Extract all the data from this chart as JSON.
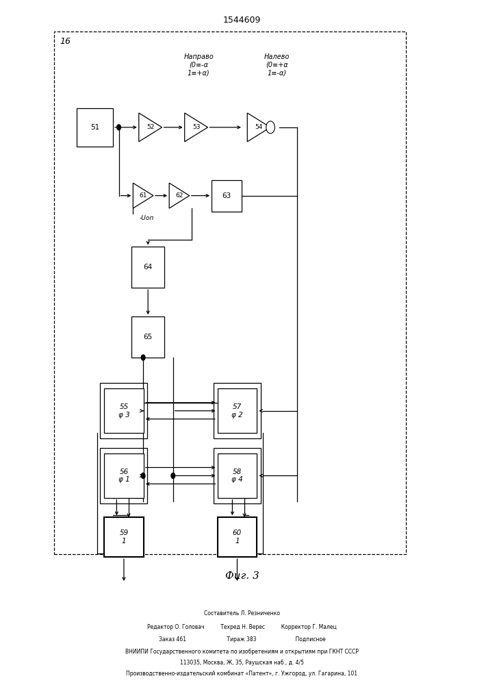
{
  "patent_number": "1544609",
  "fig_caption": "Фиг. 3",
  "fig_label": "16",
  "bg_color": "#ffffff",
  "line_color": "#000000",
  "footer_lines": [
    "Составитель Л. Резниченко",
    "Редактор О. Головач          Техред Н. Верес          Корректор Г. Малец",
    "Заказ 461                         Тираж 383                        Подписное",
    "ВНИИПИ Государственного комитета по изобретениям и открытиям при ГКНТ СССР",
    "113035, Москва, Ж, 35, Раушская наб., д. 4/5",
    "Производственно-издательский комбинат «Патент», г. Ужгород, ул. Гагарина, 101"
  ]
}
